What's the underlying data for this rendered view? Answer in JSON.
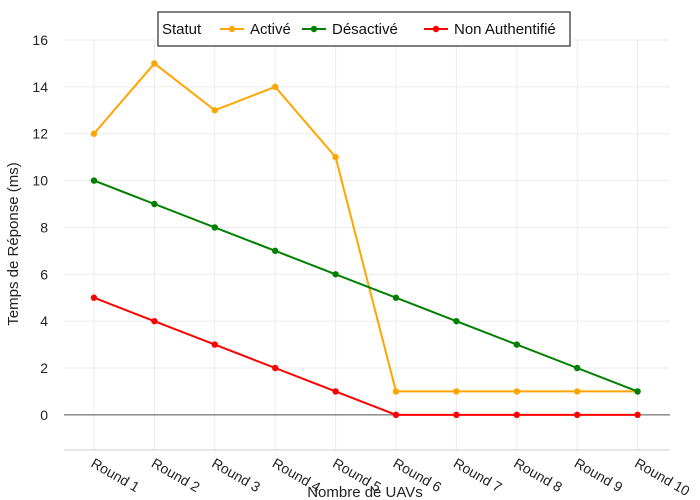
{
  "chart_data": {
    "type": "line",
    "title": "",
    "xlabel": "Nombre de UAVs",
    "ylabel": "Temps de Réponse (ms)",
    "categories": [
      "Round 1",
      "Round 2",
      "Round 3",
      "Round 4",
      "Round 5",
      "Round 6",
      "Round 7",
      "Round 8",
      "Round 9",
      "Round 10"
    ],
    "ylim": [
      -1.5,
      16
    ],
    "yticks": [
      0,
      2,
      4,
      6,
      8,
      10,
      12,
      14,
      16
    ],
    "grid": true,
    "legend": {
      "title": "Statut",
      "placement": "top-center"
    },
    "series": [
      {
        "name": "Activé",
        "color": "#FFA500",
        "values": [
          12,
          15,
          13,
          14,
          11,
          1,
          1,
          1,
          1,
          1
        ]
      },
      {
        "name": "Désactivé",
        "color": "#008000",
        "values": [
          10,
          9,
          8,
          7,
          6,
          5,
          4,
          3,
          2,
          1
        ]
      },
      {
        "name": "Non Authentifié",
        "color": "#FF0000",
        "values": [
          5,
          4,
          3,
          2,
          1,
          0,
          0,
          0,
          0,
          0
        ]
      }
    ]
  }
}
